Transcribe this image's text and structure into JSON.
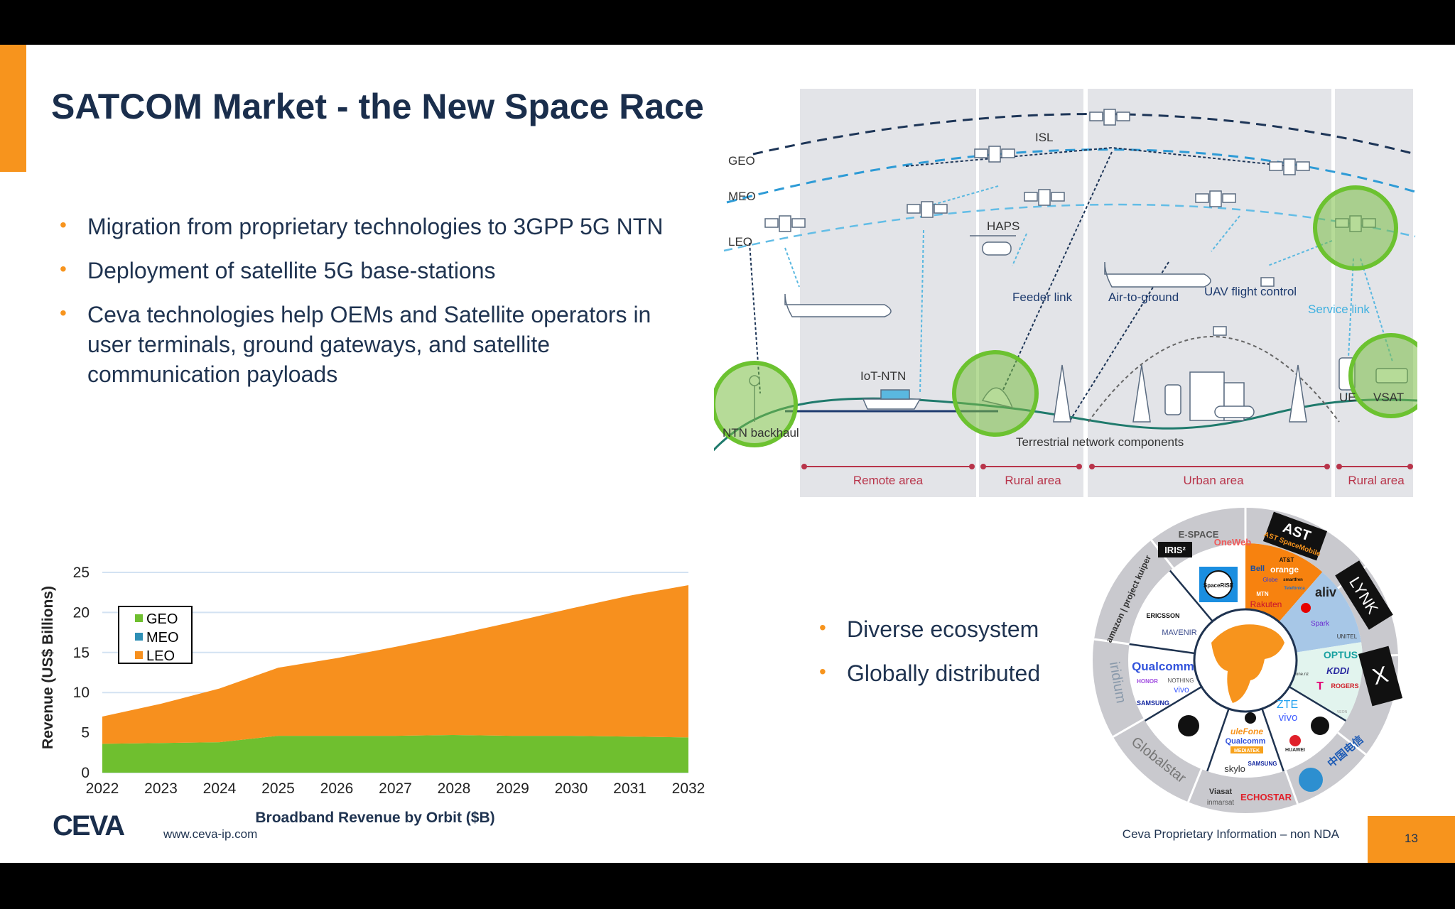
{
  "slide": {
    "title": "SATCOM Market - the New Space Race",
    "bullets": [
      "Migration from proprietary technologies to 3GPP 5G NTN",
      "Deployment of  satellite 5G base-stations",
      "Ceva technologies help OEMs and Satellite operators in user terminals, ground gateways, and satellite communication payloads"
    ],
    "bullets2": [
      "Diverse ecosystem",
      "Globally distributed"
    ],
    "accent_color": "#f7941d",
    "title_color": "#1a2e4c"
  },
  "diagram": {
    "orbits": [
      "GEO",
      "MEO",
      "LEO"
    ],
    "labels": {
      "isl": "ISL",
      "haps": "HAPS",
      "feeder": "Feeder link",
      "air": "Air-to-ground",
      "uav": "UAV flight control",
      "service": "Service link",
      "iot": "IoT-NTN",
      "backhaul": "NTN backhaul",
      "terrestrial": "Terrestrial network components",
      "ue": "UE",
      "vsat": "VSAT"
    },
    "areas": [
      "Remote area",
      "Rural area",
      "Urban area",
      "Rural area"
    ]
  },
  "ecosystem": {
    "logos": {
      "espace": "E-SPACE",
      "oneweb": "OneWeb",
      "iris": "IRIS²",
      "ast": "AST SpaceMobile",
      "kuiper": "amazon | project kuiper",
      "iridium": "iridium",
      "globalstar": "Globalstar",
      "viasat": "Viasat",
      "inmarsat": "inmarsat",
      "echostar": "ECHOSTAR",
      "chinatelecom": "中国电信",
      "starlink": "X",
      "lynk": "LYNK",
      "spacerise": "SpaceRISE",
      "ericsson": "ERICSSON",
      "mavenir": "MAVENIR",
      "qualcomm": "Qualcomm",
      "honor": "HONOR",
      "nothing": "NOTHING",
      "vivo": "vivo",
      "samsung": "SAMSUNG",
      "ulefone": "uleFone",
      "mediatek": "MEDIATEK",
      "skylo": "skylo",
      "zte": "ZTE",
      "huawei": "HUAWEI",
      "att": "AT&T",
      "bell": "Bell",
      "orange": "orange",
      "globe": "Globe",
      "smartfren": "smartfren",
      "telefonica": "Telefónica",
      "mtn": "MTN",
      "rakuten": "Rakuten",
      "aliv": "aliv",
      "spark": "Spark",
      "unitel": "UNITEL",
      "optus": "OPTUS",
      "kddi": "KDDI",
      "rogers": "ROGERS",
      "onenz": "one.nz",
      "veon": "VEON"
    }
  },
  "chart_data": {
    "type": "area",
    "stacked": true,
    "title": "Broadband Revenue by Orbit ($B)",
    "xlabel": "",
    "ylabel": "Revenue (US$ Billions)",
    "categories": [
      "2022",
      "2023",
      "2024",
      "2025",
      "2026",
      "2027",
      "2028",
      "2029",
      "2030",
      "2031",
      "2032"
    ],
    "ylim": [
      0,
      25
    ],
    "yticks": [
      0,
      5,
      10,
      15,
      20,
      25
    ],
    "grid": true,
    "legend": "upper-left",
    "series": [
      {
        "name": "GEO",
        "color": "#6fbf2f",
        "values": [
          3.6,
          3.7,
          3.8,
          4.6,
          4.6,
          4.6,
          4.7,
          4.6,
          4.6,
          4.5,
          4.4
        ]
      },
      {
        "name": "MEO",
        "color": "#2e8fb5",
        "values": [
          0,
          0,
          0,
          0,
          0,
          0,
          0,
          0,
          0,
          0,
          0
        ]
      },
      {
        "name": "LEO",
        "color": "#f7901e",
        "values": [
          3.4,
          4.9,
          6.7,
          8.5,
          9.7,
          11.1,
          12.5,
          14.2,
          15.9,
          17.6,
          19.0
        ]
      }
    ]
  },
  "footer": {
    "logo": "CEVA",
    "url": "www.ceva-ip.com",
    "proprietary": "Ceva Proprietary Information – non NDA",
    "page": "13"
  }
}
